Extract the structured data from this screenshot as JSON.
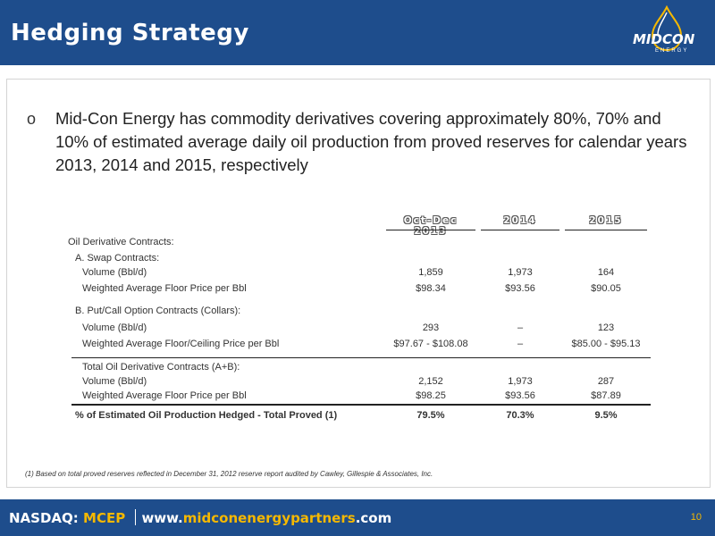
{
  "header": {
    "title": "Hedging Strategy"
  },
  "logo": {
    "main_mid": "MID",
    "main_con": "CON",
    "sub": "ENERGY"
  },
  "bullet": {
    "mark": "o",
    "text": "Mid-Con Energy has commodity derivatives covering approximately 80%, 70% and 10% of estimated average daily oil production from proved reserves for calendar years 2013, 2014 and 2015, respectively"
  },
  "table": {
    "columns": [
      "Oct-Dec 2013",
      "2014",
      "2015"
    ],
    "section_title": "Oil Derivative Contracts:",
    "swap": {
      "title": "A. Swap Contracts:",
      "rows": [
        {
          "label": "Volume (Bbl/d)",
          "values": [
            "1,859",
            "1,973",
            "164"
          ]
        },
        {
          "label": "Weighted Average Floor Price per Bbl",
          "values": [
            "$98.34",
            "$93.56",
            "$90.05"
          ]
        }
      ]
    },
    "collars": {
      "title": "B. Put/Call Option Contracts (Collars):",
      "rows": [
        {
          "label": "Volume (Bbl/d)",
          "values": [
            "293",
            "–",
            "123"
          ]
        },
        {
          "label": "Weighted Average Floor/Ceiling Price per Bbl",
          "values": [
            "$97.67 - $108.08",
            "–",
            "$85.00 - $95.13"
          ]
        }
      ]
    },
    "total": {
      "title": "Total Oil Derivative Contracts (A+B):",
      "rows": [
        {
          "label": "Volume (Bbl/d)",
          "values": [
            "2,152",
            "1,973",
            "287"
          ]
        },
        {
          "label": "Weighted Average Floor Price per Bbl",
          "values": [
            "$98.25",
            "$93.56",
            "$87.89"
          ]
        }
      ]
    },
    "hedged": {
      "label": "% of Estimated Oil Production Hedged - Total Proved (1)",
      "values": [
        "79.5%",
        "70.3%",
        "9.5%"
      ]
    }
  },
  "footnote": "(1)   Based on total proved reserves reflected in December 31, 2012 reserve report audited by Cawley, Gillespie & Associates, Inc.",
  "footer": {
    "exchange": "NASDAQ:",
    "ticker": "MCEP",
    "url_pre": "www.",
    "url_hl": "midconenergypartners",
    "url_post": ".com",
    "page": "10"
  },
  "colors": {
    "brand_blue": "#1e4d8c",
    "accent_gold": "#f5b800"
  }
}
